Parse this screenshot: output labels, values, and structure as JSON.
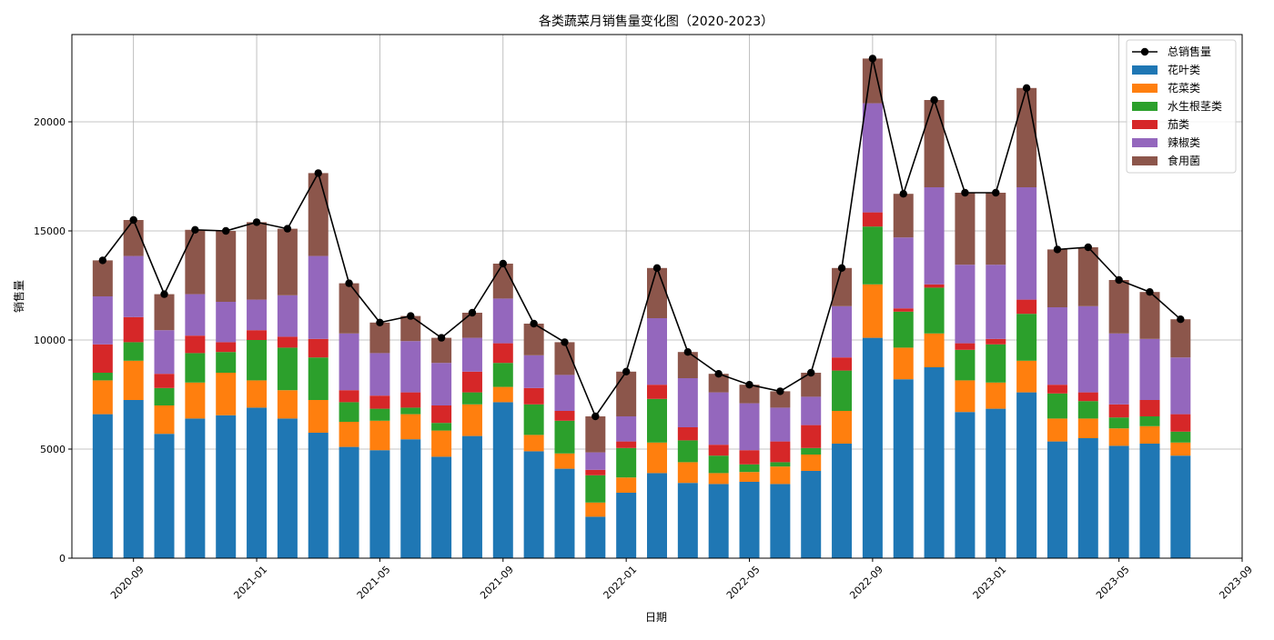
{
  "chart_data": {
    "type": "bar",
    "stacked": true,
    "title": "各类蔬菜月销售量变化图（2020-2023）",
    "xlabel": "日期",
    "ylabel": "销售量",
    "x_start": "2020-07",
    "x_end": "2023-09",
    "ylim": [
      0,
      24000
    ],
    "grid": true,
    "legend_position": "top-right",
    "categories": [
      "2020-08",
      "2020-09",
      "2020-10",
      "2020-11",
      "2020-12",
      "2021-01",
      "2021-02",
      "2021-03",
      "2021-04",
      "2021-05",
      "2021-06",
      "2021-07",
      "2021-08",
      "2021-09",
      "2021-10",
      "2021-11",
      "2021-12",
      "2022-01",
      "2022-02",
      "2022-03",
      "2022-04",
      "2022-05",
      "2022-06",
      "2022-07",
      "2022-08",
      "2022-09",
      "2022-10",
      "2022-11",
      "2022-12",
      "2023-01",
      "2023-02",
      "2023-03",
      "2023-04",
      "2023-05",
      "2023-06",
      "2023-07"
    ],
    "x_ticks": [
      "2020-09",
      "2021-01",
      "2021-05",
      "2021-09",
      "2022-01",
      "2022-05",
      "2022-09",
      "2023-01",
      "2023-05",
      "2023-09"
    ],
    "y_ticks": [
      0,
      5000,
      10000,
      15000,
      20000
    ],
    "series": [
      {
        "name": "花叶类",
        "color": "#1f77b4",
        "values": [
          6600,
          7250,
          5700,
          6400,
          6550,
          6900,
          6400,
          5750,
          5100,
          4950,
          5450,
          4650,
          5600,
          7150,
          4900,
          4100,
          1900,
          3000,
          3900,
          3450,
          3400,
          3500,
          3400,
          4000,
          5250,
          10100,
          8200,
          8750,
          6700,
          6850,
          7600,
          5350,
          5500,
          5150,
          5250,
          4700
        ]
      },
      {
        "name": "花菜类",
        "color": "#ff7f0e",
        "values": [
          1550,
          1800,
          1300,
          1650,
          1950,
          1250,
          1300,
          1500,
          1150,
          1350,
          1150,
          1200,
          1450,
          700,
          750,
          700,
          650,
          700,
          1400,
          950,
          500,
          450,
          800,
          750,
          1500,
          2450,
          1450,
          1550,
          1450,
          1200,
          1450,
          1050,
          900,
          800,
          800,
          600
        ]
      },
      {
        "name": "水生根茎类",
        "color": "#2ca02c",
        "values": [
          350,
          850,
          800,
          1350,
          950,
          1850,
          1950,
          1950,
          900,
          550,
          300,
          350,
          550,
          1100,
          1400,
          1500,
          1250,
          1350,
          2000,
          1000,
          800,
          350,
          200,
          300,
          1850,
          2650,
          1650,
          2100,
          1400,
          1750,
          2150,
          1150,
          800,
          500,
          450,
          500
        ]
      },
      {
        "name": "茄类",
        "color": "#d62728",
        "values": [
          1300,
          1150,
          650,
          800,
          450,
          450,
          500,
          850,
          550,
          600,
          700,
          800,
          950,
          900,
          750,
          450,
          250,
          300,
          650,
          600,
          500,
          650,
          950,
          1050,
          600,
          650,
          150,
          150,
          300,
          250,
          650,
          400,
          400,
          600,
          750,
          800
        ]
      },
      {
        "name": "辣椒类",
        "color": "#9467bd",
        "values": [
          2200,
          2800,
          2000,
          1900,
          1850,
          1400,
          1900,
          3800,
          2600,
          1950,
          2350,
          1950,
          1550,
          2050,
          1500,
          1650,
          800,
          1150,
          3050,
          2250,
          2400,
          2150,
          1550,
          1300,
          2350,
          5000,
          3250,
          4450,
          3600,
          3400,
          5150,
          3550,
          3950,
          3250,
          2800,
          2600
        ]
      },
      {
        "name": "食用菌",
        "color": "#8c564b",
        "values": [
          1650,
          1650,
          1650,
          2950,
          3250,
          3550,
          3050,
          3800,
          2300,
          1400,
          1150,
          1150,
          1150,
          1600,
          1450,
          1500,
          1650,
          2050,
          2300,
          1200,
          850,
          850,
          750,
          1100,
          1750,
          2050,
          2000,
          4000,
          3300,
          3300,
          4550,
          2650,
          2700,
          2450,
          2150,
          1750
        ]
      }
    ],
    "line": {
      "name": "总销售量",
      "color": "#000000",
      "values": [
        13650,
        15500,
        12100,
        15050,
        15000,
        15400,
        15100,
        17650,
        12600,
        10800,
        11100,
        10100,
        11250,
        13500,
        10750,
        9900,
        6500,
        8550,
        13300,
        9450,
        8450,
        7950,
        7650,
        8500,
        13300,
        22900,
        16700,
        21000,
        16750,
        16750,
        21550,
        14150,
        14250,
        12750,
        12200,
        10950
      ]
    }
  }
}
